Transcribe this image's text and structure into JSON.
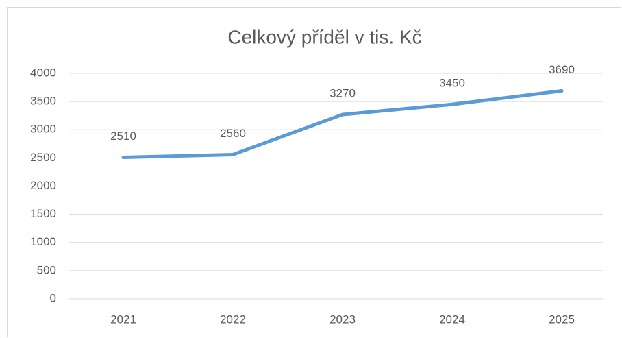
{
  "chart_data": {
    "type": "line",
    "title": "Celkový příděl v tis. Kč",
    "categories": [
      "2021",
      "2022",
      "2023",
      "2024",
      "2025"
    ],
    "series": [
      {
        "name": "Celkový příděl",
        "color": "#5b9bd5",
        "values": [
          2510,
          2560,
          3270,
          3450,
          3690
        ]
      }
    ],
    "ylim": [
      0,
      4000
    ],
    "yticks": [
      0,
      500,
      1000,
      1500,
      2000,
      2500,
      3000,
      3500,
      4000
    ],
    "grid": true,
    "data_labels": true
  }
}
